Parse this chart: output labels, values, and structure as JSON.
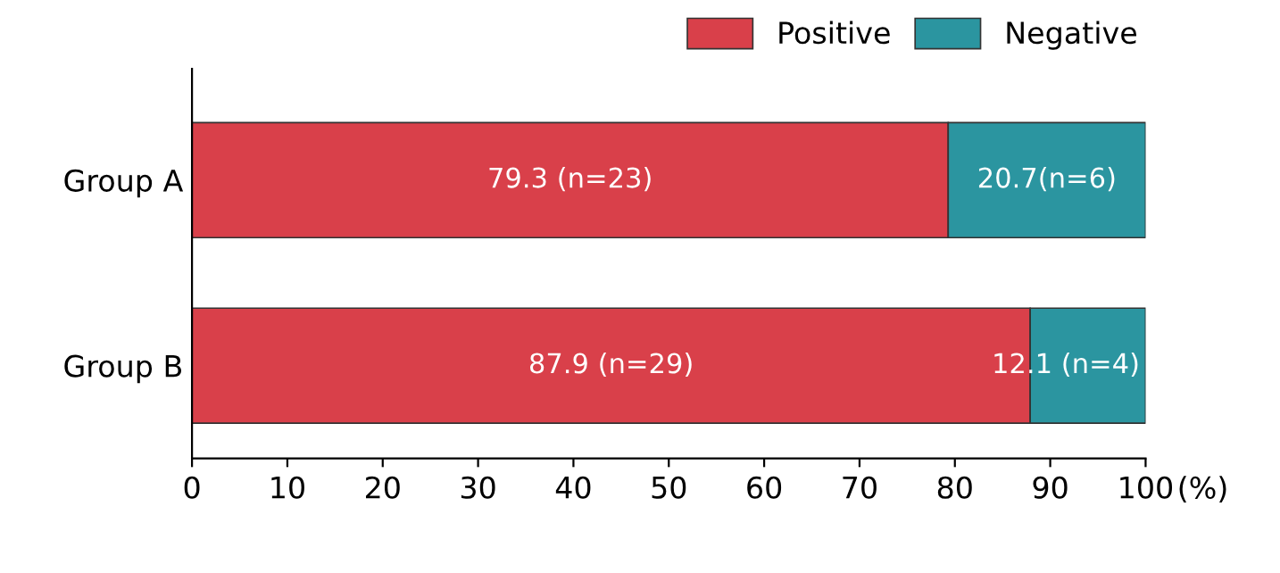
{
  "chart_data": {
    "type": "bar",
    "orientation": "horizontal",
    "stacked": true,
    "categories": [
      "Group A",
      "Group B"
    ],
    "series": [
      {
        "name": "Positive",
        "color": "#d9404a",
        "values": [
          79.3,
          87.9
        ],
        "value_labels": [
          "79.3 (n=23)",
          "87.9 (n=29)"
        ]
      },
      {
        "name": "Negative",
        "color": "#2b95a0",
        "values": [
          20.7,
          12.1
        ],
        "value_labels": [
          "20.7(n=6)",
          "12.1 (n=4)"
        ]
      }
    ],
    "xlabel": "(%)",
    "xlim": [
      0,
      100
    ],
    "xticks": [
      0,
      10,
      20,
      30,
      40,
      50,
      60,
      70,
      80,
      90,
      100
    ],
    "grid": false,
    "legend": "top right"
  }
}
